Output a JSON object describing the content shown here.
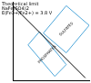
{
  "chart_data": {
    "type": "scatter",
    "annotations": [
      "Theoretical limit",
      "NaFe(SO4)2",
      "E(Fe3+/Fe2+) = 3.8 V"
    ],
    "xlim": [
      0,
      10
    ],
    "ylim": [
      0,
      10
    ],
    "grid": false,
    "tick_labels": false,
    "series": [
      {
        "color": "#000000",
        "line_style": "solid",
        "x": [
          0,
          9.5
        ],
        "values": [
          9.5,
          0.3
        ]
      },
      {
        "name": "SULFATES",
        "color": "#4da6d9",
        "line_style": "solid",
        "x": [
          4,
          7,
          10,
          7,
          4
        ],
        "values": [
          6,
          9.5,
          7,
          3.5,
          6
        ]
      },
      {
        "name": "PHOSPHATES",
        "color": "#4da6d9",
        "line_style": "solid",
        "x": [
          2,
          3.5,
          7,
          5.5,
          2
        ],
        "values": [
          4.5,
          6.2,
          2,
          0.5,
          4.5
        ]
      }
    ]
  }
}
